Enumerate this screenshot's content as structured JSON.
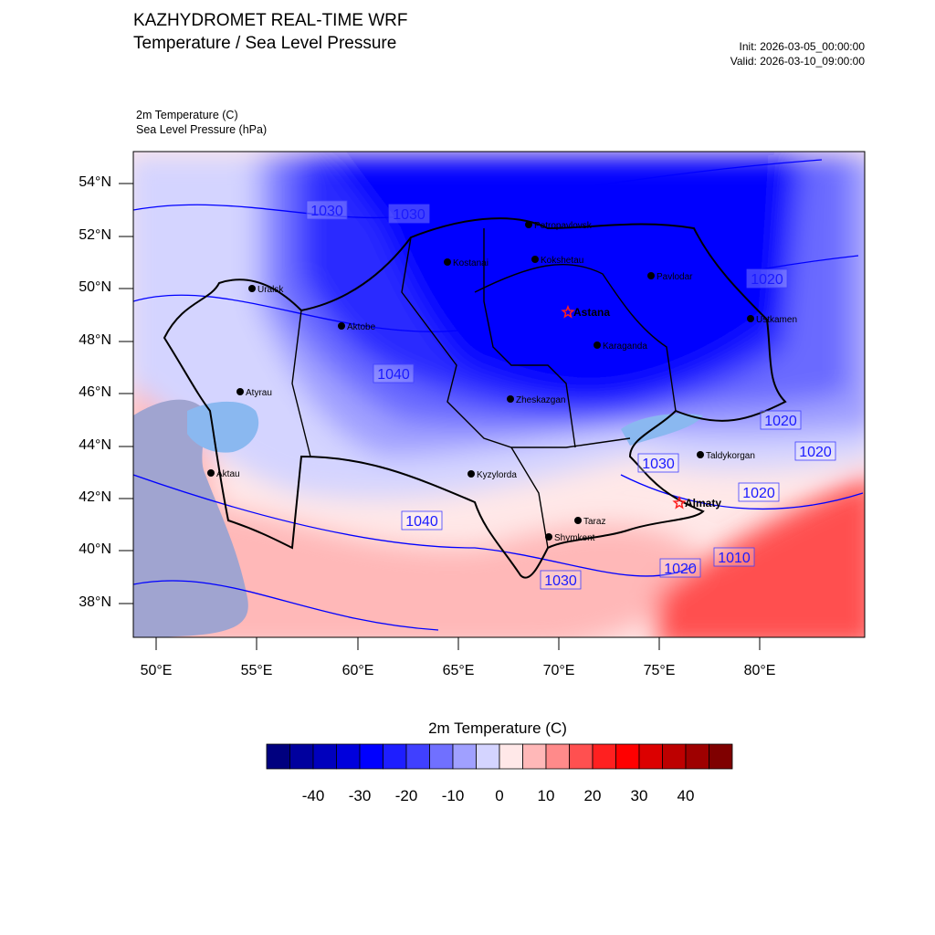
{
  "header": {
    "title": "KAZHYDROMET REAL-TIME WRF",
    "subtitle": "Temperature / Sea Level Pressure",
    "init": "Init: 2026-03-05_00:00:00",
    "valid": "Valid: 2026-03-10_09:00:00"
  },
  "fields": {
    "temperature": "2m Temperature   (C)",
    "pressure": "Sea Level Pressure   (hPa)"
  },
  "axes": {
    "lat_labels": [
      "54°N",
      "52°N",
      "50°N",
      "48°N",
      "46°N",
      "44°N",
      "42°N",
      "40°N",
      "38°N"
    ],
    "lon_labels": [
      "50°E",
      "55°E",
      "60°E",
      "65°E",
      "70°E",
      "75°E",
      "80°E"
    ]
  },
  "cities": [
    {
      "name": "Petropavlovsk",
      "bold": false
    },
    {
      "name": "Kostanai",
      "bold": false
    },
    {
      "name": "Kokshetau",
      "bold": false
    },
    {
      "name": "Pavlodar",
      "bold": false
    },
    {
      "name": "Uralsk",
      "bold": false
    },
    {
      "name": "Aktobe",
      "bold": false
    },
    {
      "name": "Astana",
      "bold": true,
      "capital": true
    },
    {
      "name": "Ustkamen",
      "bold": false
    },
    {
      "name": "Karaganda",
      "bold": false
    },
    {
      "name": "Atyrau",
      "bold": false
    },
    {
      "name": "Zheskazgan",
      "bold": false
    },
    {
      "name": "Taldykorgan",
      "bold": false
    },
    {
      "name": "Aktau",
      "bold": false
    },
    {
      "name": "Kyzylorda",
      "bold": false
    },
    {
      "name": "Almaty",
      "bold": true,
      "capital": true
    },
    {
      "name": "Taraz",
      "bold": false
    },
    {
      "name": "Shymkent",
      "bold": false
    }
  ],
  "isobar_labels": [
    "1030",
    "1030",
    "1040",
    "1020",
    "1020",
    "1020",
    "1030",
    "1020",
    "1040",
    "1030",
    "1020",
    "1010"
  ],
  "colorbar": {
    "title": "2m Temperature  (C)",
    "tick_labels": [
      "-40",
      "-30",
      "-20",
      "-10",
      "0",
      "10",
      "20",
      "30",
      "40"
    ],
    "colors": [
      "#00007f",
      "#00009e",
      "#0000bd",
      "#0000dc",
      "#0000ff",
      "#1e1eff",
      "#4040ff",
      "#7070ff",
      "#a0a0ff",
      "#d4d4ff",
      "#ffe8e8",
      "#ffb8b8",
      "#ff8a8a",
      "#ff5050",
      "#ff2020",
      "#ff0000",
      "#dc0000",
      "#bd0000",
      "#9e0000",
      "#7f0000"
    ]
  },
  "map_colors": {
    "deep_cold": "#0000ff",
    "cold": "#2a2aff",
    "cool": "#6a6aff",
    "mild_cool": "#a0a0ff",
    "near_zero": "#d4d4ff",
    "slight_warm": "#ffe8e8",
    "warm": "#ffb8b8",
    "hot": "#ff5050",
    "water": "#8ab8f0",
    "caspian": "#a0a4d0"
  }
}
